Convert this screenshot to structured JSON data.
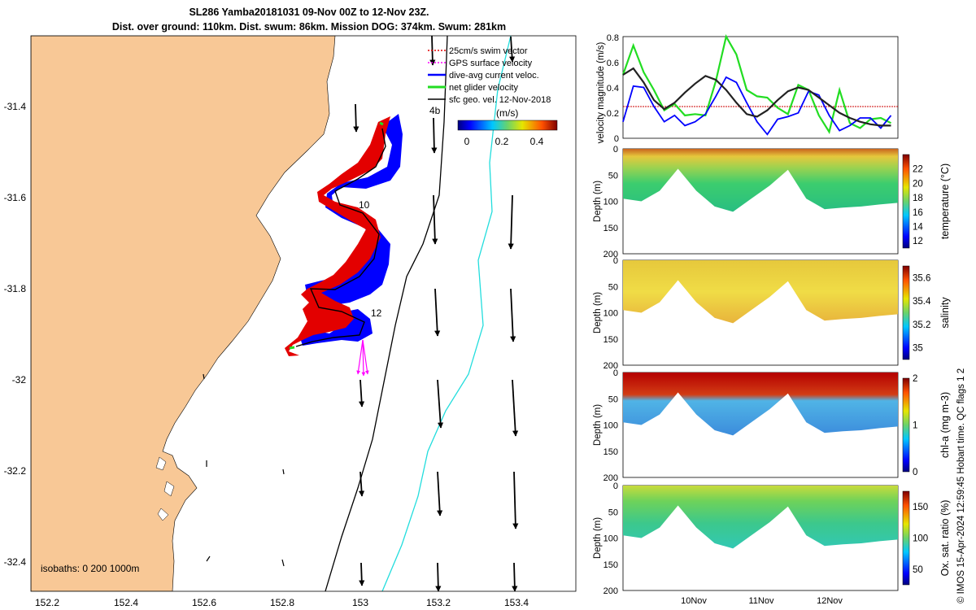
{
  "title": {
    "line1": "SL286 Yamba20181031 09-Nov 00Z to 12-Nov 23Z.",
    "line2": "Dist. over ground: 110km. Dist. swum: 86km. Mission DOG: 374km. Swum: 281km"
  },
  "copyright": "© IMOS 15-Apr-2024 12:59:45 Hobart time. QC flags 1  2",
  "colors": {
    "land": "#f8c896",
    "swim": "#e30000",
    "dac": "#0000ff",
    "net": "#22dd22",
    "gps": "#ff00ff",
    "geo": "#000000",
    "isobath_200": "#000000",
    "isobath_1000": "#22dddd",
    "mean_velocity": "#222222",
    "threshold": "#cc0000"
  },
  "map": {
    "x_ticks": [
      "152.2",
      "152.4",
      "152.6",
      "152.8",
      "153",
      "153.2",
      "153.4"
    ],
    "y_ticks": [
      "-31.4",
      "-31.6",
      "-31.8",
      "-32",
      "-32.2",
      "-32.4"
    ],
    "legend": [
      {
        "label": "25cm/s swim vector",
        "color": "#e30000"
      },
      {
        "label": "GPS surface velocity",
        "color": "#ff00ff"
      },
      {
        "label": "dive-avg current veloc.",
        "color": "#0000ff"
      },
      {
        "label": "net glider velocity",
        "color": "#22dd22"
      },
      {
        "label": "sfc geo. vel. 12-Nov-2018",
        "color": "#000000"
      }
    ],
    "colorbar": {
      "label": "(m/s)",
      "ticks": [
        "0",
        "0.2",
        "0.4"
      ]
    },
    "isobath_label": "isobaths: 0   200  1000m",
    "track_labels": [
      "4b",
      "10",
      "12"
    ]
  },
  "velocity_panel": {
    "ylabel": "velocity magnitude (m/s)",
    "y_ticks": [
      "0",
      "0.2",
      "0.4",
      "0.6",
      "0.8"
    ],
    "threshold": 0.25
  },
  "sections": [
    {
      "name": "temperature",
      "label": "temperature (°C)",
      "ticks": [
        "12",
        "14",
        "16",
        "18",
        "20",
        "22"
      ]
    },
    {
      "name": "salinity",
      "label": "salinity",
      "ticks": [
        "35",
        "35.2",
        "35.4",
        "35.6"
      ]
    },
    {
      "name": "chla",
      "label": "chl-a (mg m-3)",
      "ticks": [
        "0",
        "1",
        "2"
      ]
    },
    {
      "name": "oxygen",
      "label": "Ox. sat. ratio (%)",
      "ticks": [
        "50",
        "100",
        "150"
      ]
    }
  ],
  "depth_ticks": [
    "0",
    "50",
    "100",
    "150",
    "200"
  ],
  "depth_label": "Depth (m)",
  "time_ticks": [
    "10Nov",
    "11Nov",
    "12Nov"
  ],
  "chart_data": [
    {
      "type": "line",
      "title": "SL286 Yamba20181031 09-Nov 00Z to 12-Nov 23Z.",
      "xlabel": "",
      "ylabel": "velocity magnitude (m/s)",
      "x_range_days": [
        "09-Nov 00Z",
        "12-Nov 23Z"
      ],
      "ylim": [
        0,
        0.8
      ],
      "x_day": [
        9.0,
        9.15,
        9.3,
        9.45,
        9.6,
        9.75,
        9.9,
        10.05,
        10.2,
        10.35,
        10.5,
        10.65,
        10.8,
        10.95,
        11.1,
        11.25,
        11.4,
        11.55,
        11.7,
        11.85,
        12.0,
        12.15,
        12.3,
        12.45,
        12.6,
        12.75,
        12.9
      ],
      "series": [
        {
          "values": [
            0.5,
            0.73,
            0.52,
            0.38,
            0.22,
            0.27,
            0.18,
            0.19,
            0.18,
            0.45,
            0.8,
            0.66,
            0.38,
            0.33,
            0.32,
            0.24,
            0.19,
            0.42,
            0.38,
            0.18,
            0.05,
            0.38,
            0.12,
            0.08,
            0.15,
            0.16,
            0.12
          ]
        },
        {
          "values": [
            0.13,
            0.41,
            0.4,
            0.25,
            0.13,
            0.18,
            0.1,
            0.13,
            0.19,
            0.33,
            0.48,
            0.44,
            0.28,
            0.13,
            0.03,
            0.15,
            0.17,
            0.2,
            0.37,
            0.34,
            0.18,
            0.06,
            0.1,
            0.16,
            0.16,
            0.08,
            0.18
          ]
        },
        {
          "values": [
            0.5,
            0.55,
            0.44,
            0.3,
            0.23,
            0.28,
            0.36,
            0.43,
            0.49,
            0.46,
            0.38,
            0.28,
            0.19,
            0.17,
            0.22,
            0.3,
            0.37,
            0.4,
            0.38,
            0.32,
            0.26,
            0.2,
            0.16,
            0.13,
            0.11,
            0.1,
            0.1
          ]
        }
      ]
    },
    {
      "type": "heatmap",
      "xlabel": "",
      "ylabel": "Depth (m)",
      "ylim": [
        200,
        0
      ],
      "colorbar_label": "temperature (°C)",
      "clim": [
        11,
        24
      ],
      "profile_max_depth_m": [
        95,
        100,
        80,
        38,
        80,
        110,
        120,
        95,
        70,
        40,
        95,
        115,
        112,
        110,
        106,
        103
      ]
    },
    {
      "type": "heatmap",
      "xlabel": "",
      "ylabel": "Depth (m)",
      "ylim": [
        200,
        0
      ],
      "colorbar_label": "salinity",
      "clim": [
        34.9,
        35.7
      ],
      "profile_max_depth_m": [
        95,
        100,
        80,
        38,
        80,
        110,
        120,
        95,
        70,
        40,
        95,
        115,
        112,
        110,
        106,
        103
      ]
    },
    {
      "type": "heatmap",
      "xlabel": "",
      "ylabel": "Depth (m)",
      "ylim": [
        200,
        0
      ],
      "colorbar_label": "chl-a (mg m-3)",
      "clim": [
        0,
        2
      ],
      "profile_max_depth_m": [
        95,
        100,
        80,
        38,
        80,
        110,
        120,
        95,
        70,
        40,
        95,
        115,
        112,
        110,
        106,
        103
      ]
    },
    {
      "type": "heatmap",
      "xlabel": "",
      "ylabel": "Depth (m)",
      "ylim": [
        200,
        0
      ],
      "colorbar_label": "Ox. sat. ratio (%)",
      "clim": [
        25,
        175
      ],
      "profile_max_depth_m": [
        95,
        100,
        80,
        38,
        80,
        110,
        120,
        95,
        70,
        40,
        95,
        115,
        112,
        110,
        106,
        103
      ]
    }
  ]
}
